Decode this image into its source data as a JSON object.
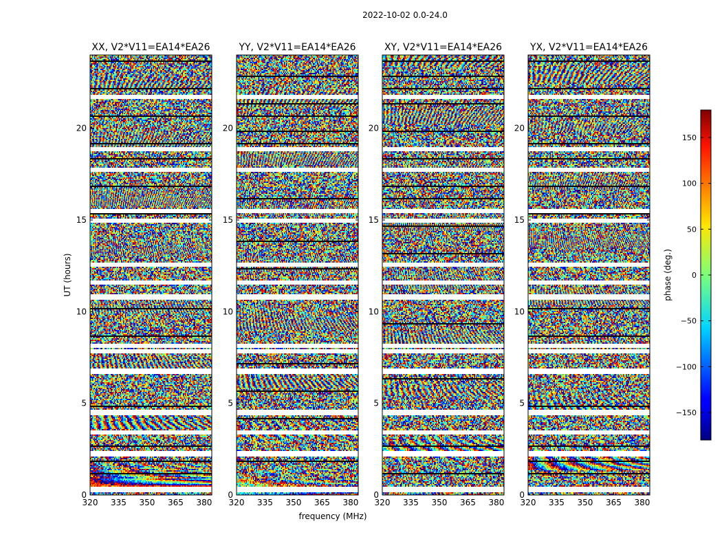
{
  "chart_data": {
    "type": "heatmap",
    "suptitle": "2022-10-02 0.0-24.0",
    "ylabel": "UT (hours)",
    "xlabel": "frequency (MHz)",
    "xlim": [
      320,
      384
    ],
    "ylim": [
      0,
      24
    ],
    "xticks": [
      320,
      335,
      350,
      365,
      380
    ],
    "yticks": [
      0,
      5,
      10,
      15,
      20
    ],
    "panels": [
      {
        "title": "XX, V2*V11=EA14*EA26",
        "id": "XX"
      },
      {
        "title": "YY, V2*V11=EA14*EA26",
        "id": "YY"
      },
      {
        "title": "XY, V2*V11=EA14*EA26",
        "id": "XY"
      },
      {
        "title": "YX, V2*V11=EA14*EA26",
        "id": "YX"
      }
    ],
    "colorbar": {
      "label": "phase (deg.)",
      "range": [
        -180,
        180
      ],
      "ticks": [
        -150,
        -100,
        -50,
        0,
        50,
        100,
        150
      ],
      "tick_labels": [
        "−150",
        "−100",
        "−50",
        "0",
        "50",
        "100",
        "150"
      ],
      "colormap": "jet"
    },
    "gap_hours": [
      21.7,
      18.85,
      17.75,
      15.5,
      14.95,
      12.55,
      11.6,
      10.8,
      8.15,
      7.85,
      6.75,
      4.5,
      3.4,
      2.25,
      0.3
    ]
  }
}
